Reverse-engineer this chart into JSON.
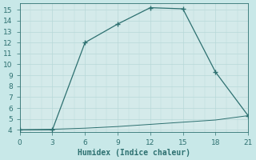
{
  "title": "",
  "xlabel": "Humidex (Indice chaleur)",
  "line1_x": [
    0,
    3,
    6,
    9,
    12,
    15,
    18,
    21
  ],
  "line1_y": [
    4,
    4,
    12,
    13.7,
    15.2,
    15.1,
    9.3,
    5.3
  ],
  "line2_x": [
    0,
    3,
    6,
    9,
    12,
    15,
    18,
    21
  ],
  "line2_y": [
    4,
    4.05,
    4.15,
    4.3,
    4.5,
    4.7,
    4.9,
    5.3
  ],
  "line_color": "#2d7070",
  "bg_color": "#c8e8e8",
  "plot_bg_color": "#d4eaea",
  "grid_color": "#b8d8d8",
  "xlim": [
    0,
    21
  ],
  "ylim": [
    3.8,
    15.6
  ],
  "xticks": [
    0,
    3,
    6,
    9,
    12,
    15,
    18,
    21
  ],
  "yticks": [
    4,
    5,
    6,
    7,
    8,
    9,
    10,
    11,
    12,
    13,
    14,
    15
  ],
  "label_fontsize": 7,
  "tick_fontsize": 6.5
}
